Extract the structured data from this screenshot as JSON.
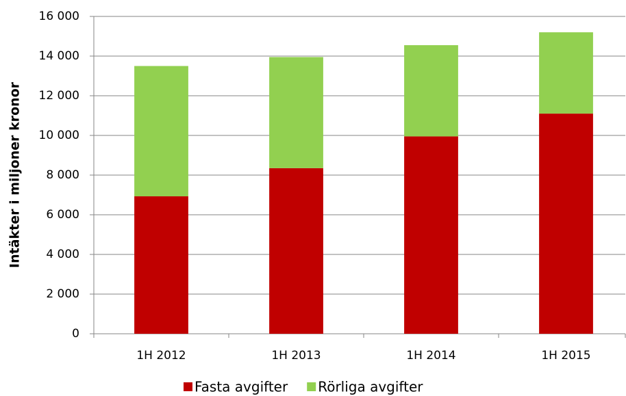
{
  "chart_data": {
    "type": "stacked_bar",
    "y_label": "Intäkter i miljoner kronor",
    "categories": [
      "1H 2012",
      "1H 2013",
      "1H 2014",
      "1H 2015"
    ],
    "series": [
      {
        "name": "Fasta avgifter",
        "color": "#c00000",
        "values": [
          6930,
          8350,
          9950,
          11100
        ]
      },
      {
        "name": "Rörliga avgifter",
        "color": "#92d050",
        "values": [
          6570,
          5600,
          4600,
          4100
        ]
      }
    ],
    "ylim": [
      0,
      16000
    ],
    "yticks": [
      0,
      {
        "value": 2000,
        "label": "2 000"
      },
      {
        "value": 4000,
        "label": "4 000"
      },
      {
        "value": 6000,
        "label": "6 000"
      },
      {
        "value": 8000,
        "label": "8 000"
      },
      {
        "value": 10000,
        "label": "10 000"
      },
      {
        "value": 12000,
        "label": "12 000"
      },
      {
        "value": 14000,
        "label": "14 000"
      },
      {
        "value": 16000,
        "label": "16 000"
      }
    ],
    "grid": true,
    "legend": "bottom"
  }
}
